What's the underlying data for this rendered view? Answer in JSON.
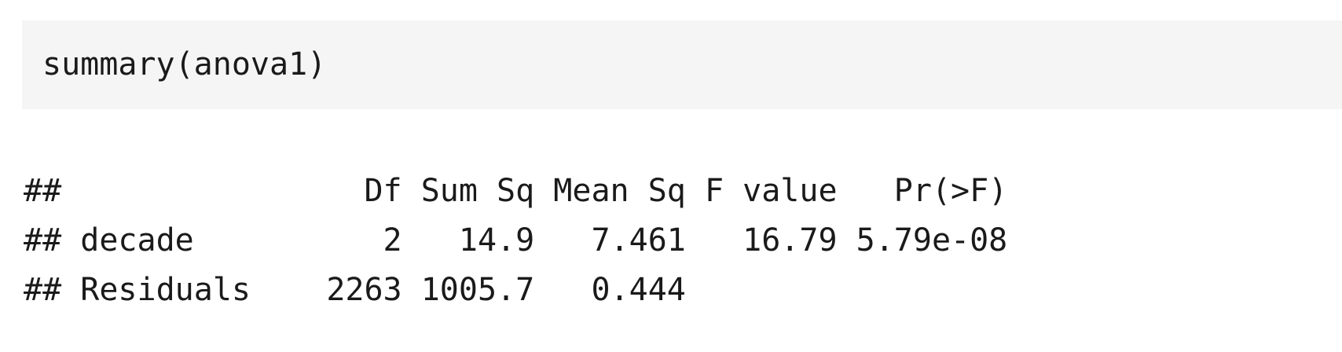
{
  "code": {
    "source": "summary(anova1)"
  },
  "output": {
    "lines": [
      "##                Df Sum Sq Mean Sq F value   Pr(>F)",
      "## decade          2   14.9   7.461   16.79 5.79e-08",
      "## Residuals    2263 1005.7   0.444"
    ]
  }
}
